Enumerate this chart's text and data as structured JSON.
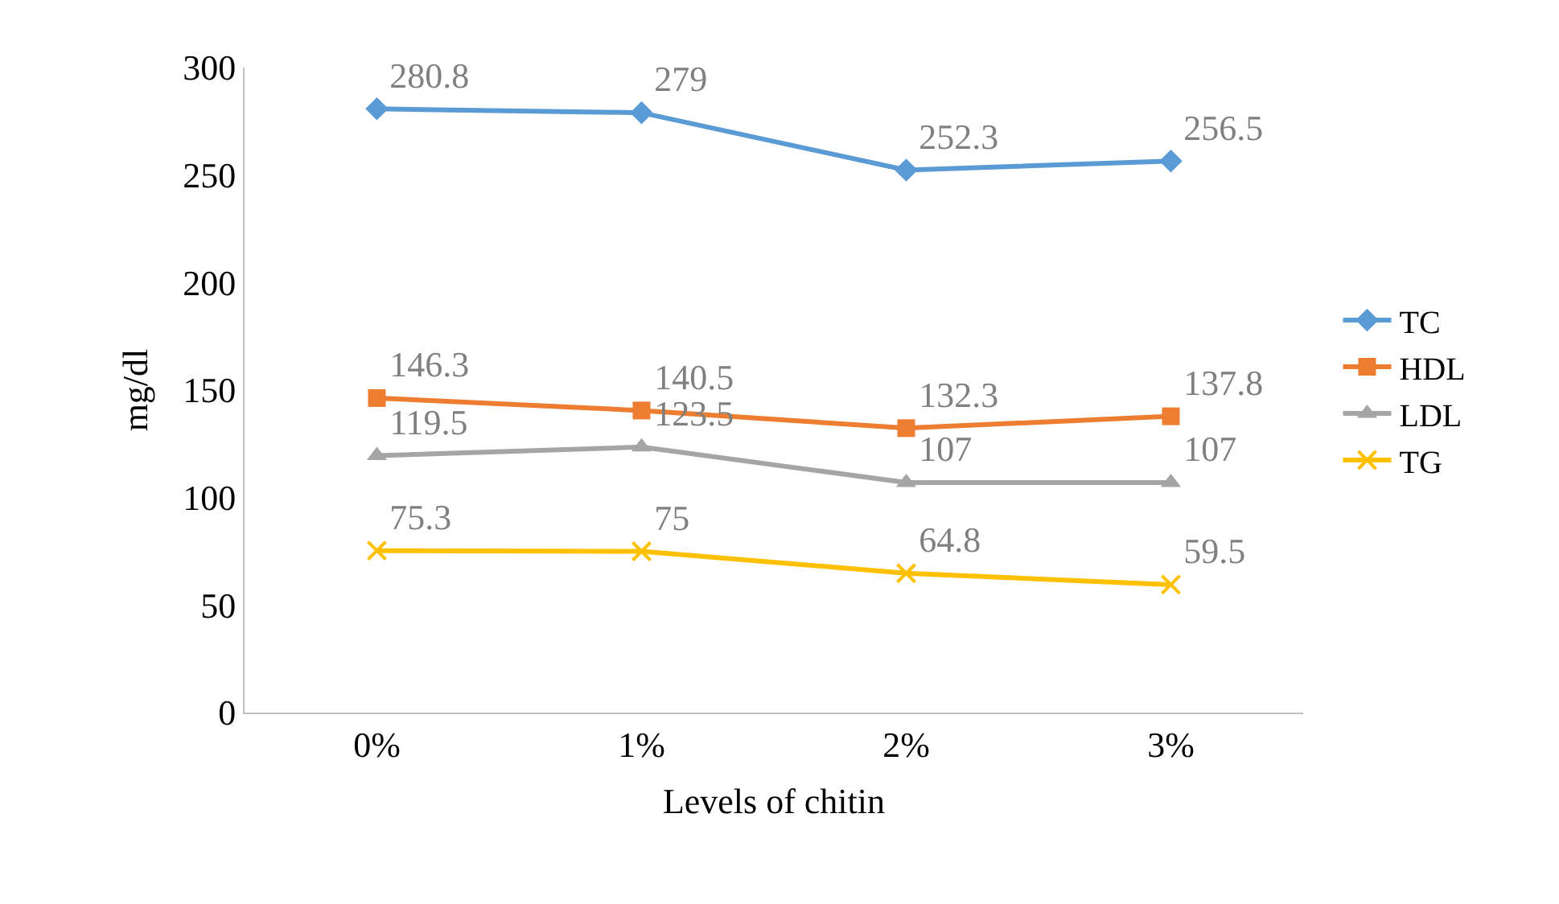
{
  "chart_data": {
    "type": "line",
    "xlabel": "Levels of chitin",
    "ylabel": "mg/dl",
    "categories": [
      "0%",
      "1%",
      "2%",
      "3%"
    ],
    "series": [
      {
        "name": "TC",
        "color": "#5b9bd5",
        "marker": "diamond",
        "values": [
          280.8,
          279,
          252.3,
          256.5
        ]
      },
      {
        "name": "HDL",
        "color": "#ed7d31",
        "marker": "square",
        "values": [
          146.3,
          140.5,
          132.3,
          137.8
        ]
      },
      {
        "name": "LDL",
        "color": "#a5a5a5",
        "marker": "triangle",
        "values": [
          119.5,
          123.5,
          107,
          107
        ]
      },
      {
        "name": "TG",
        "color": "#ffc000",
        "marker": "cross",
        "values": [
          75.3,
          75,
          64.8,
          59.5
        ]
      }
    ],
    "ylim": [
      0,
      300
    ],
    "yticks": [
      0,
      50,
      100,
      150,
      200,
      250,
      300
    ],
    "data_labels": true,
    "legend": "right",
    "line_style": "solid"
  }
}
